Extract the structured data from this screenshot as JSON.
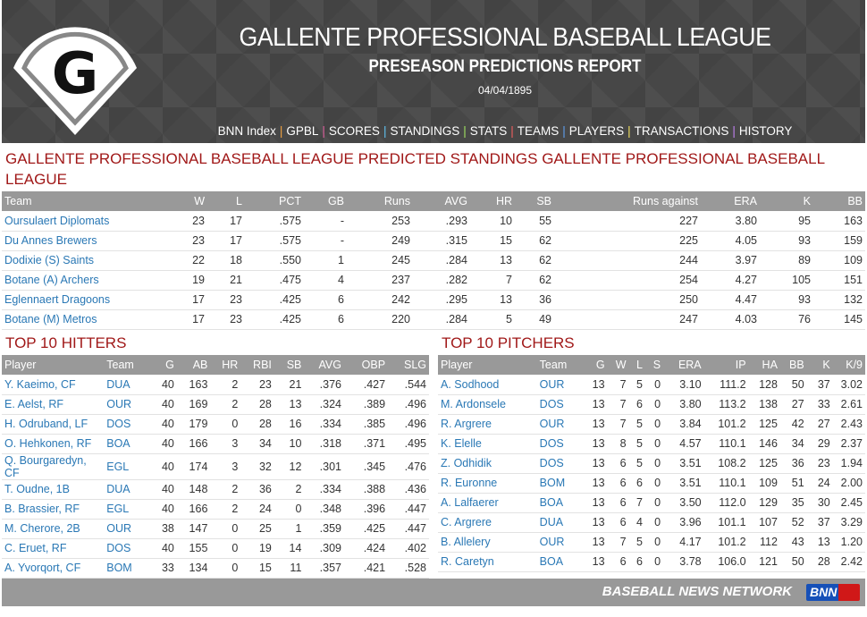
{
  "header": {
    "title": "GALLENTE PROFESSIONAL BASEBALL LEAGUE",
    "subtitle": "PRESEASON PREDICTIONS REPORT",
    "date": "04/04/1895",
    "logo_letter": "G"
  },
  "nav": [
    {
      "label": "BNN Index"
    },
    {
      "label": "GPBL"
    },
    {
      "label": "SCORES"
    },
    {
      "label": "STANDINGS"
    },
    {
      "label": "STATS"
    },
    {
      "label": "TEAMS"
    },
    {
      "label": "PLAYERS"
    },
    {
      "label": "TRANSACTIONS"
    },
    {
      "label": "HISTORY"
    }
  ],
  "nav_separator": "|",
  "standings": {
    "title": "GALLENTE PROFESSIONAL BASEBALL LEAGUE PREDICTED STANDINGS GALLENTE PROFESSIONAL BASEBALL LEAGUE",
    "columns": [
      "Team",
      "W",
      "L",
      "PCT",
      "GB",
      "Runs",
      "AVG",
      "HR",
      "SB",
      "Runs against",
      "ERA",
      "K",
      "BB"
    ],
    "rows": [
      [
        "Oursulaert Diplomats",
        "23",
        "17",
        ".575",
        "-",
        "253",
        ".293",
        "10",
        "55",
        "227",
        "3.80",
        "95",
        "163"
      ],
      [
        "Du Annes Brewers",
        "23",
        "17",
        ".575",
        "-",
        "249",
        ".315",
        "15",
        "62",
        "225",
        "4.05",
        "93",
        "159"
      ],
      [
        "Dodixie (S) Saints",
        "22",
        "18",
        ".550",
        "1",
        "245",
        ".284",
        "13",
        "62",
        "244",
        "3.97",
        "89",
        "109"
      ],
      [
        "Botane (A) Archers",
        "19",
        "21",
        ".475",
        "4",
        "237",
        ".282",
        "7",
        "62",
        "254",
        "4.27",
        "105",
        "151"
      ],
      [
        "Eglennaert Dragoons",
        "17",
        "23",
        ".425",
        "6",
        "242",
        ".295",
        "13",
        "36",
        "250",
        "4.47",
        "93",
        "132"
      ],
      [
        "Botane (M) Metros",
        "17",
        "23",
        ".425",
        "6",
        "220",
        ".284",
        "5",
        "49",
        "247",
        "4.03",
        "76",
        "145"
      ]
    ]
  },
  "hitters": {
    "title": "TOP 10 HITTERS",
    "columns": [
      "Player",
      "Team",
      "G",
      "AB",
      "HR",
      "RBI",
      "SB",
      "AVG",
      "OBP",
      "SLG"
    ],
    "rows": [
      [
        "Y. Kaeimo, CF",
        "DUA",
        "40",
        "163",
        "2",
        "23",
        "21",
        ".376",
        ".427",
        ".544"
      ],
      [
        "E. Aelst, RF",
        "OUR",
        "40",
        "169",
        "2",
        "28",
        "13",
        ".324",
        ".389",
        ".496"
      ],
      [
        "H. Odruband, LF",
        "DOS",
        "40",
        "179",
        "0",
        "28",
        "16",
        ".334",
        ".385",
        ".496"
      ],
      [
        "O. Hehkonen, RF",
        "BOA",
        "40",
        "166",
        "3",
        "34",
        "10",
        ".318",
        ".371",
        ".495"
      ],
      [
        "Q. Bourgaredyn, CF",
        "EGL",
        "40",
        "174",
        "3",
        "32",
        "12",
        ".301",
        ".345",
        ".476"
      ],
      [
        "T. Oudne, 1B",
        "DUA",
        "40",
        "148",
        "2",
        "36",
        "2",
        ".334",
        ".388",
        ".436"
      ],
      [
        "B. Brassier, RF",
        "EGL",
        "40",
        "166",
        "2",
        "24",
        "0",
        ".348",
        ".396",
        ".447"
      ],
      [
        "M. Cherore, 2B",
        "OUR",
        "38",
        "147",
        "0",
        "25",
        "1",
        ".359",
        ".425",
        ".447"
      ],
      [
        "C. Eruet, RF",
        "DOS",
        "40",
        "155",
        "0",
        "19",
        "14",
        ".309",
        ".424",
        ".402"
      ],
      [
        "A. Yvorqort, CF",
        "BOM",
        "33",
        "134",
        "0",
        "15",
        "11",
        ".357",
        ".421",
        ".528"
      ]
    ]
  },
  "pitchers": {
    "title": "TOP 10 PITCHERS",
    "columns": [
      "Player",
      "Team",
      "G",
      "W",
      "L",
      "S",
      "ERA",
      "IP",
      "HA",
      "BB",
      "K",
      "K/9"
    ],
    "rows": [
      [
        "A. Sodhood",
        "OUR",
        "13",
        "7",
        "5",
        "0",
        "3.10",
        "111.2",
        "128",
        "50",
        "37",
        "3.02"
      ],
      [
        "M. Ardonsele",
        "DOS",
        "13",
        "7",
        "6",
        "0",
        "3.80",
        "113.2",
        "138",
        "27",
        "33",
        "2.61"
      ],
      [
        "R. Argrere",
        "OUR",
        "13",
        "7",
        "5",
        "0",
        "3.84",
        "101.2",
        "125",
        "42",
        "27",
        "2.43"
      ],
      [
        "K. Elelle",
        "DOS",
        "13",
        "8",
        "5",
        "0",
        "4.57",
        "110.1",
        "146",
        "34",
        "29",
        "2.37"
      ],
      [
        "Z. Odhidik",
        "DOS",
        "13",
        "6",
        "5",
        "0",
        "3.51",
        "108.2",
        "125",
        "36",
        "23",
        "1.94"
      ],
      [
        "R. Euronne",
        "BOM",
        "13",
        "6",
        "6",
        "0",
        "3.51",
        "110.1",
        "109",
        "51",
        "24",
        "2.00"
      ],
      [
        "A. Lalfaerer",
        "BOA",
        "13",
        "6",
        "7",
        "0",
        "3.50",
        "112.0",
        "129",
        "35",
        "30",
        "2.45"
      ],
      [
        "C. Argrere",
        "DUA",
        "13",
        "6",
        "4",
        "0",
        "3.96",
        "101.1",
        "107",
        "52",
        "37",
        "3.29"
      ],
      [
        "B. Allelery",
        "OUR",
        "13",
        "7",
        "5",
        "0",
        "4.17",
        "101.2",
        "112",
        "43",
        "13",
        "1.20"
      ],
      [
        "R. Caretyn",
        "BOA",
        "13",
        "6",
        "6",
        "0",
        "3.78",
        "106.0",
        "121",
        "50",
        "28",
        "2.42"
      ]
    ]
  },
  "footer": {
    "network": "BASEBALL NEWS NETWORK",
    "logo_text": "BNN"
  },
  "colors": {
    "header_bg": "#474747",
    "section_title": "#a01818",
    "table_header": "#999999",
    "link": "#2a78b5"
  }
}
